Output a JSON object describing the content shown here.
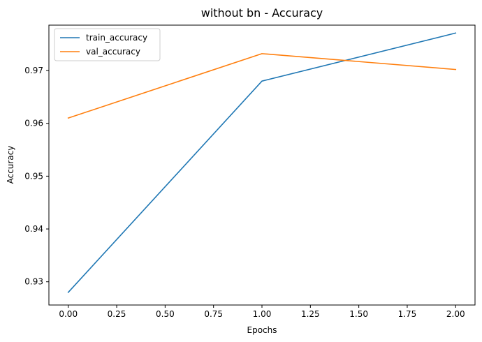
{
  "chart_data": {
    "type": "line",
    "title": "without bn - Accuracy",
    "xlabel": "Epochs",
    "ylabel": "Accuracy",
    "x": [
      0,
      1,
      2
    ],
    "series": [
      {
        "name": "train_accuracy",
        "color": "#1f77b4",
        "values": [
          0.928,
          0.968,
          0.9771
        ]
      },
      {
        "name": "val_accuracy",
        "color": "#ff7f0e",
        "values": [
          0.961,
          0.9732,
          0.9702
        ]
      }
    ],
    "xlim": [
      -0.1,
      2.1
    ],
    "ylim": [
      0.9256,
      0.9786
    ],
    "xticks": [
      0.0,
      0.25,
      0.5,
      0.75,
      1.0,
      1.25,
      1.5,
      1.75,
      2.0
    ],
    "xtick_labels": [
      "0.00",
      "0.25",
      "0.50",
      "0.75",
      "1.00",
      "1.25",
      "1.50",
      "1.75",
      "2.00"
    ],
    "yticks": [
      0.93,
      0.94,
      0.95,
      0.96,
      0.97
    ],
    "ytick_labels": [
      "0.93",
      "0.94",
      "0.95",
      "0.96",
      "0.97"
    ],
    "grid": false,
    "legend_position": "upper left"
  }
}
